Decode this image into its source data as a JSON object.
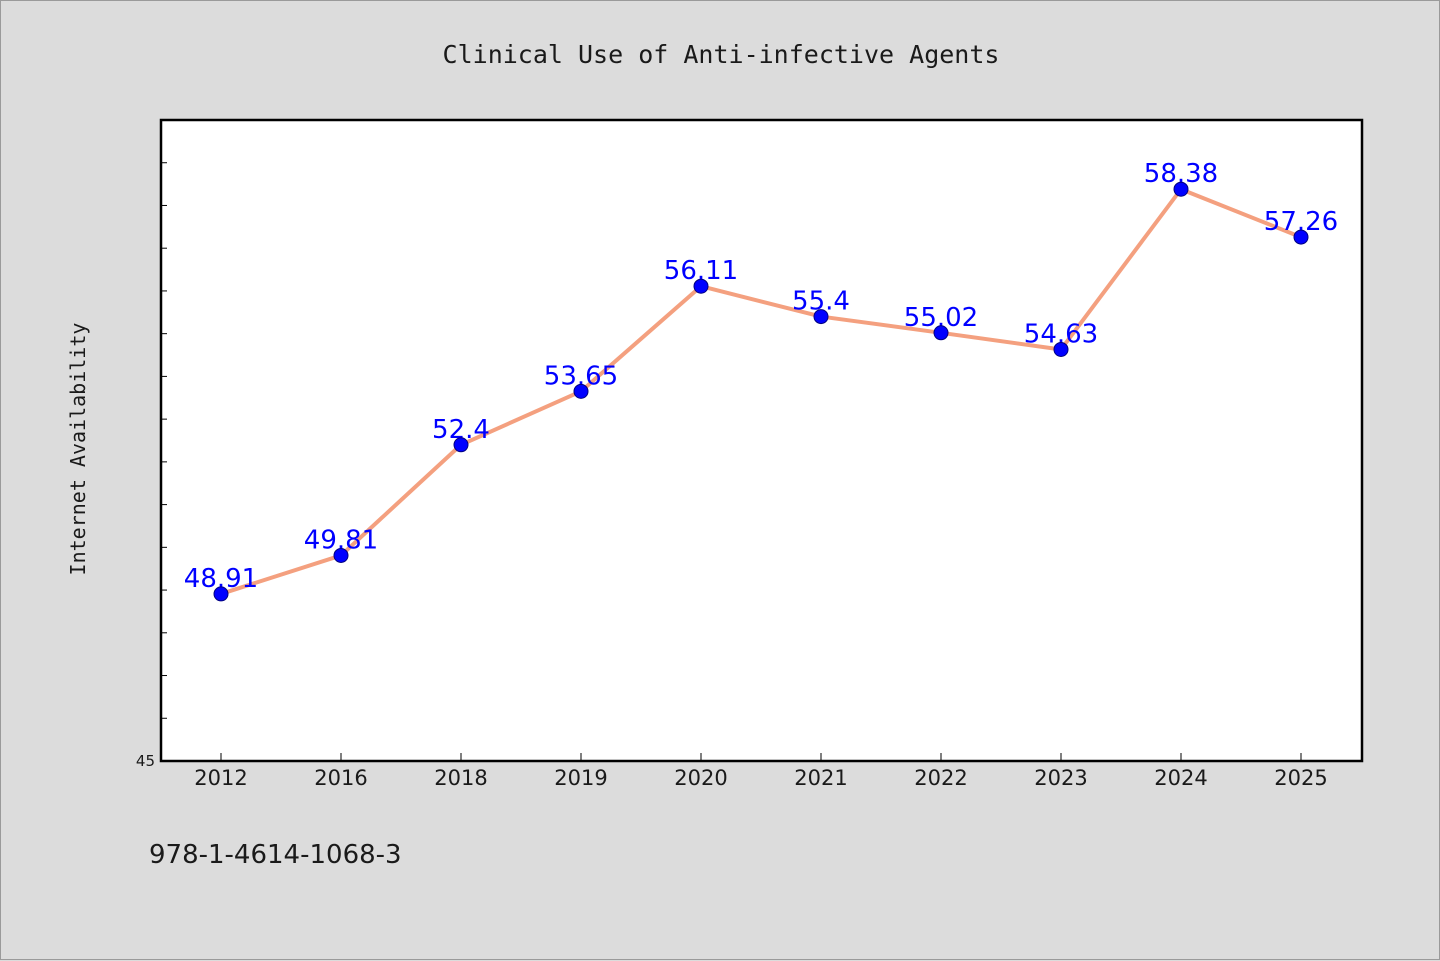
{
  "footer": {
    "isbn": "978-1-4614-1068-3"
  },
  "chart_data": {
    "type": "line",
    "title": "Clinical Use of Anti-infective Agents",
    "xlabel": "",
    "ylabel": "Internet Availability",
    "categories": [
      "2012",
      "2016",
      "2018",
      "2019",
      "2020",
      "2021",
      "2022",
      "2023",
      "2024",
      "2025"
    ],
    "values": [
      48.91,
      49.81,
      52.4,
      53.65,
      56.11,
      55.4,
      55.02,
      54.63,
      58.38,
      57.26
    ],
    "data_labels": [
      "48.91",
      "49.81",
      "52.4",
      "53.65",
      "56.11",
      "55.4",
      "55.02",
      "54.63",
      "58.38",
      "57.26"
    ],
    "ylim": [
      45,
      60
    ],
    "y_tick_labels": [
      "45"
    ],
    "y_minor_tick_step": 1,
    "grid": false,
    "legend": "none",
    "colors": {
      "background": "#dcdcdc",
      "plot_background": "#ffffff",
      "line": "#f4a07f",
      "marker": "#0000ff",
      "data_label": "#0000ff",
      "axis": "#000000",
      "text": "#1a1a1a"
    }
  }
}
